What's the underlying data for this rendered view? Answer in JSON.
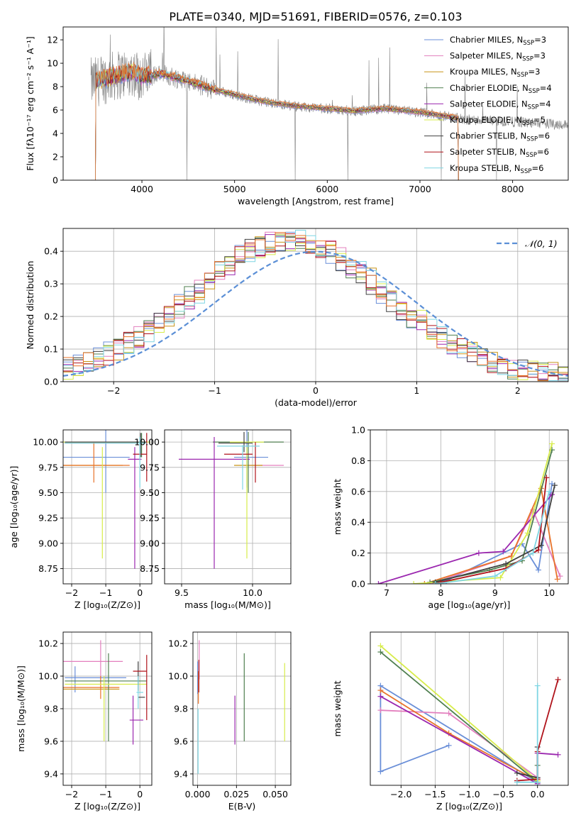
{
  "figure": {
    "title": "PLATE=0340, MJD=51691, FIBERID=0576, z=0.103"
  },
  "colors": {
    "Chabrier MILES": "#6a8fd8",
    "Salpeter MILES": "#e37fbe",
    "Kroupa MILES": "#c89418",
    "Chabrier ELODIE": "#4f7f4f",
    "Salpeter ELODIE": "#9b27af",
    "Kroupa ELODIE": "#d7ec4a",
    "Chabrier STELIB": "#404040",
    "Salpeter STELIB": "#b0131b",
    "Kroupa STELIB": "#7fd6e3",
    "orange": "#e8732a",
    "data_gray": "#808080"
  },
  "legend": {
    "fits": [
      {
        "label": "Chabrier MILES, N",
        "sub": "SSP",
        "suffix": "=3"
      },
      {
        "label": "Salpeter MILES, N",
        "sub": "SSP",
        "suffix": "=3"
      },
      {
        "label": "Kroupa MILES, N",
        "sub": "SSP",
        "suffix": "=3"
      },
      {
        "label": "Chabrier ELODIE, N",
        "sub": "SSP",
        "suffix": "=4"
      },
      {
        "label": "Salpeter ELODIE, N",
        "sub": "SSP",
        "suffix": "=4"
      },
      {
        "label": "Kroupa ELODIE, N",
        "sub": "SSP",
        "suffix": "=5"
      },
      {
        "label": "Chabrier STELIB, N",
        "sub": "SSP",
        "suffix": "=6"
      },
      {
        "label": "Salpeter STELIB, N",
        "sub": "SSP",
        "suffix": "=6"
      },
      {
        "label": "Kroupa STELIB, N",
        "sub": "SSP",
        "suffix": "=6"
      }
    ],
    "normal": "𝒩(0, 1)"
  },
  "chart_data": [
    {
      "id": "spectrum",
      "type": "line",
      "xlabel": "wavelength [Angstrom, rest frame]",
      "ylabel": "Flux [fλ10⁻¹⁷ erg cm⁻² s⁻¹ A⁻¹]",
      "xlim": [
        3150,
        8600
      ],
      "ylim": [
        0,
        13.1
      ],
      "xticks": [
        4000,
        5000,
        6000,
        7000,
        8000
      ],
      "yticks": [
        0,
        2,
        4,
        6,
        8,
        10,
        12
      ],
      "continuum_knots": [
        [
          3450,
          8.3
        ],
        [
          3700,
          8.9
        ],
        [
          3900,
          9.3
        ],
        [
          4000,
          8.8
        ],
        [
          4200,
          9.1
        ],
        [
          4400,
          8.7
        ],
        [
          4600,
          8.2
        ],
        [
          4800,
          7.7
        ],
        [
          5000,
          7.3
        ],
        [
          5200,
          6.9
        ],
        [
          5400,
          6.6
        ],
        [
          5700,
          6.3
        ],
        [
          6000,
          6.1
        ],
        [
          6300,
          5.9
        ],
        [
          6600,
          6.1
        ],
        [
          7000,
          5.8
        ],
        [
          7400,
          5.3
        ]
      ],
      "observed_range": [
        3450,
        9180
      ],
      "model_range": [
        3450,
        7420
      ]
    },
    {
      "id": "residuals",
      "type": "line",
      "xlabel": "(data-model)/error",
      "ylabel": "Normed distribution",
      "xlim": [
        -2.5,
        2.5
      ],
      "ylim": [
        0,
        0.47
      ],
      "xticks": [
        -2,
        -1,
        0,
        1,
        2
      ],
      "yticks": [
        0.0,
        0.1,
        0.2,
        0.3,
        0.4
      ],
      "normal_mu": 0,
      "normal_sigma": 1,
      "bin_width": 0.1
    },
    {
      "id": "age-vs-Z",
      "type": "scatter",
      "xlabel": "Z [log₁₀(Z/Z⊙)]",
      "ylabel": "age  [log₁₀(age/yr)]",
      "xlim": [
        -2.25,
        0.35
      ],
      "ylim": [
        8.6,
        10.12
      ],
      "xticks": [
        -2,
        -1,
        0
      ],
      "yticks": [
        8.75,
        9.0,
        9.25,
        9.5,
        9.75,
        10.0
      ],
      "points": [
        {
          "s": "Chabrier MILES",
          "x": -1.3,
          "xe": 1.0,
          "y": 9.85,
          "ye": 0.0
        },
        {
          "s": "Chabrier MILES",
          "x": -1.0,
          "xe": 0.0,
          "y": 9.85,
          "ye": 0.35
        },
        {
          "s": "Salpeter MILES",
          "x": -1.2,
          "xe": 1.0,
          "y": 9.99,
          "ye": 0.0
        },
        {
          "s": "Kroupa MILES",
          "x": -1.4,
          "xe": 0.9,
          "y": 9.77,
          "ye": 0.0
        },
        {
          "s": "orange",
          "x": -1.3,
          "xe": 1.0,
          "y": 9.77,
          "ye": 0.0
        },
        {
          "s": "orange",
          "x": -1.35,
          "xe": 0.0,
          "y": 9.8,
          "ye": 0.2
        },
        {
          "s": "Chabrier ELODIE",
          "x": -1.0,
          "xe": 1.2,
          "y": 9.99,
          "ye": 0.0
        },
        {
          "s": "Chabrier ELODIE",
          "x": 0.05,
          "xe": 0.0,
          "y": 9.97,
          "ye": 0.12
        },
        {
          "s": "Salpeter ELODIE",
          "x": -0.15,
          "xe": 0.2,
          "y": 9.83,
          "ye": 0.0
        },
        {
          "s": "Salpeter ELODIE",
          "x": -0.15,
          "xe": 0.0,
          "y": 9.35,
          "ye": 0.6
        },
        {
          "s": "Kroupa ELODIE",
          "x": -1.0,
          "xe": 1.3,
          "y": 10.0,
          "ye": 0.0
        },
        {
          "s": "Kroupa ELODIE",
          "x": -1.1,
          "xe": 0.0,
          "y": 9.4,
          "ye": 0.55
        },
        {
          "s": "Chabrier STELIB",
          "x": -1.0,
          "xe": 1.2,
          "y": 10.0,
          "ye": 0.0
        },
        {
          "s": "Chabrier STELIB",
          "x": 0.02,
          "xe": 0.0,
          "y": 9.97,
          "ye": 0.12
        },
        {
          "s": "Salpeter STELIB",
          "x": 0.0,
          "xe": 0.2,
          "y": 9.88,
          "ye": 0.0
        },
        {
          "s": "Salpeter STELIB",
          "x": 0.2,
          "xe": 0.0,
          "y": 9.85,
          "ye": 0.24
        },
        {
          "s": "Kroupa STELIB",
          "x": -1.0,
          "xe": 1.2,
          "y": 9.99,
          "ye": 0.0
        },
        {
          "s": "Kroupa STELIB",
          "x": 0.0,
          "xe": 0.0,
          "y": 9.8,
          "ye": 0.25
        }
      ]
    },
    {
      "id": "age-vs-mass",
      "type": "scatter",
      "xlabel": "mass [log₁₀(M/M⊙)]",
      "ylabel": "",
      "xlim": [
        9.38,
        10.27
      ],
      "ylim": [
        8.6,
        10.12
      ],
      "xticks": [
        9.5,
        10.0
      ],
      "yticks": [
        8.75,
        9.0,
        9.25,
        9.5,
        9.75,
        10.0
      ],
      "points": [
        {
          "s": "Chabrier MILES",
          "x": 9.99,
          "xe": 0.12,
          "y": 9.85,
          "ye": 0.0
        },
        {
          "s": "Chabrier MILES",
          "x": 9.96,
          "xe": 0.0,
          "y": 9.85,
          "ye": 0.3
        },
        {
          "s": "Salpeter MILES",
          "x": 10.08,
          "xe": 0.14,
          "y": 9.77,
          "ye": 0.0
        },
        {
          "s": "Kroupa MILES",
          "x": 9.97,
          "xe": 0.1,
          "y": 9.77,
          "ye": 0.0
        },
        {
          "s": "Chabrier ELODIE",
          "x": 9.97,
          "xe": 0.25,
          "y": 10.0,
          "ye": 0.0
        },
        {
          "s": "Chabrier ELODIE",
          "x": 9.97,
          "xe": 0.0,
          "y": 9.8,
          "ye": 0.3
        },
        {
          "s": "Salpeter ELODIE",
          "x": 9.73,
          "xe": 0.25,
          "y": 9.83,
          "ye": 0.0
        },
        {
          "s": "Salpeter ELODIE",
          "x": 9.73,
          "xe": 0.0,
          "y": 9.4,
          "ye": 0.65
        },
        {
          "s": "Kroupa ELODIE",
          "x": 9.96,
          "xe": 0.12,
          "y": 10.0,
          "ye": 0.0
        },
        {
          "s": "Kroupa ELODIE",
          "x": 9.96,
          "xe": 0.0,
          "y": 9.4,
          "ye": 0.55
        },
        {
          "s": "Chabrier STELIB",
          "x": 9.88,
          "xe": 0.12,
          "y": 9.99,
          "ye": 0.0
        },
        {
          "s": "Chabrier STELIB",
          "x": 9.94,
          "xe": 0.0,
          "y": 10.0,
          "ye": 0.1
        },
        {
          "s": "Salpeter STELIB",
          "x": 9.9,
          "xe": 0.1,
          "y": 9.88,
          "ye": 0.0
        },
        {
          "s": "Salpeter STELIB",
          "x": 10.02,
          "xe": 0.0,
          "y": 9.8,
          "ye": 0.2
        },
        {
          "s": "Kroupa STELIB",
          "x": 9.9,
          "xe": 0.15,
          "y": 9.96,
          "ye": 0.0
        },
        {
          "s": "Kroupa STELIB",
          "x": 9.93,
          "xe": 0.0,
          "y": 9.75,
          "ye": 0.22
        }
      ]
    },
    {
      "id": "weight-vs-age",
      "type": "line",
      "xlabel": "age  [log₁₀(age/yr)]",
      "ylabel": "mass weight",
      "xlim": [
        6.7,
        10.35
      ],
      "ylim": [
        0,
        1.0
      ],
      "xticks": [
        7,
        8,
        9,
        10
      ],
      "yticks": [
        0.0,
        0.2,
        0.4,
        0.6,
        0.8,
        1.0
      ],
      "series": [
        {
          "s": "Chabrier MILES",
          "x": [
            7.7,
            8.1,
            9.5,
            9.8,
            10.05
          ],
          "y": [
            0.0,
            0.02,
            0.26,
            0.09,
            0.65
          ]
        },
        {
          "s": "Salpeter MILES",
          "x": [
            7.8,
            9.3,
            9.7,
            10.2
          ],
          "y": [
            0.0,
            0.18,
            0.48,
            0.05
          ]
        },
        {
          "s": "orange",
          "x": [
            7.7,
            9.3,
            9.85,
            10.15
          ],
          "y": [
            0.0,
            0.18,
            0.62,
            0.03
          ]
        },
        {
          "s": "Chabrier ELODIE",
          "x": [
            7.8,
            8.9,
            9.5,
            10.05
          ],
          "y": [
            0.01,
            0.09,
            0.15,
            0.87
          ]
        },
        {
          "s": "Salpeter ELODIE",
          "x": [
            6.85,
            8.7,
            9.15,
            10.05
          ],
          "y": [
            0.0,
            0.2,
            0.21,
            0.58
          ]
        },
        {
          "s": "Kroupa ELODIE",
          "x": [
            7.5,
            9.1,
            9.6,
            10.05
          ],
          "y": [
            0.0,
            0.04,
            0.33,
            0.91
          ]
        },
        {
          "s": "Chabrier STELIB",
          "x": [
            7.9,
            9.2,
            9.85,
            10.1
          ],
          "y": [
            0.01,
            0.13,
            0.25,
            0.64
          ]
        },
        {
          "s": "Salpeter STELIB",
          "x": [
            8.0,
            9.2,
            9.8,
            9.95
          ],
          "y": [
            0.01,
            0.1,
            0.22,
            0.69
          ]
        },
        {
          "s": "Kroupa STELIB",
          "x": [
            7.9,
            9.0,
            9.7,
            10.0
          ],
          "y": [
            0.0,
            0.05,
            0.2,
            0.6
          ]
        }
      ]
    },
    {
      "id": "mass-vs-Z",
      "type": "scatter",
      "xlabel": "Z [log₁₀(Z/Z⊙)]",
      "ylabel": "mass [log₁₀(M/M⊙)]",
      "xlim": [
        -2.25,
        0.35
      ],
      "ylim": [
        9.33,
        10.27
      ],
      "xticks": [
        -2,
        -1,
        0
      ],
      "yticks": [
        9.4,
        9.6,
        9.8,
        10.0,
        10.2
      ],
      "points": [
        {
          "s": "Chabrier MILES",
          "x": -1.3,
          "xe": 0.9,
          "y": 9.99,
          "ye": 0.0
        },
        {
          "s": "Chabrier MILES",
          "x": -1.9,
          "xe": 0.0,
          "y": 9.98,
          "ye": 0.08
        },
        {
          "s": "Salpeter MILES",
          "x": -1.4,
          "xe": 0.9,
          "y": 10.09,
          "ye": 0.0
        },
        {
          "s": "Salpeter MILES",
          "x": -1.15,
          "xe": 0.0,
          "y": 10.1,
          "ye": 0.12
        },
        {
          "s": "Kroupa MILES",
          "x": -1.45,
          "xe": 0.85,
          "y": 9.92,
          "ye": 0.0
        },
        {
          "s": "orange",
          "x": -1.45,
          "xe": 0.85,
          "y": 9.93,
          "ye": 0.0
        },
        {
          "s": "orange",
          "x": -1.15,
          "xe": 0.0,
          "y": 9.93,
          "ye": 0.07
        },
        {
          "s": "Chabrier ELODIE",
          "x": -1.0,
          "xe": 1.2,
          "y": 9.97,
          "ye": 0.0
        },
        {
          "s": "Chabrier ELODIE",
          "x": -0.92,
          "xe": 0.0,
          "y": 9.87,
          "ye": 0.27
        },
        {
          "s": "Salpeter ELODIE",
          "x": -0.1,
          "xe": 0.2,
          "y": 9.73,
          "ye": 0.0
        },
        {
          "s": "Salpeter ELODIE",
          "x": -0.2,
          "xe": 0.0,
          "y": 9.73,
          "ye": 0.15
        },
        {
          "s": "Kroupa ELODIE",
          "x": -1.0,
          "xe": 1.2,
          "y": 9.95,
          "ye": 0.0
        },
        {
          "s": "Kroupa ELODIE",
          "x": -1.05,
          "xe": 0.0,
          "y": 9.8,
          "ye": 0.2
        },
        {
          "s": "Chabrier STELIB",
          "x": 0.05,
          "xe": 0.1,
          "y": 9.87,
          "ye": 0.0
        },
        {
          "s": "Chabrier STELIB",
          "x": -0.05,
          "xe": 0.0,
          "y": 10.0,
          "ye": 0.09
        },
        {
          "s": "Salpeter STELIB",
          "x": 0.0,
          "xe": 0.2,
          "y": 10.03,
          "ye": 0.0
        },
        {
          "s": "Salpeter STELIB",
          "x": 0.2,
          "xe": 0.0,
          "y": 9.93,
          "ye": 0.2
        },
        {
          "s": "Kroupa STELIB",
          "x": 0.0,
          "xe": 0.1,
          "y": 9.9,
          "ye": 0.0
        },
        {
          "s": "Kroupa STELIB",
          "x": -0.05,
          "xe": 0.0,
          "y": 9.9,
          "ye": 0.1
        }
      ]
    },
    {
      "id": "mass-vs-EBV",
      "type": "scatter",
      "xlabel": "E(B-V)",
      "ylabel": "",
      "xlim": [
        -0.003,
        0.06
      ],
      "ylim": [
        9.33,
        10.27
      ],
      "xticks": [
        0.0,
        0.025,
        0.05
      ],
      "yticks": [
        9.4,
        9.6,
        9.8,
        10.0,
        10.2
      ],
      "points": [
        {
          "s": "Chabrier MILES",
          "x": 0.0,
          "xe": 0.0,
          "y": 9.99,
          "ye": 0.1
        },
        {
          "s": "Salpeter MILES",
          "x": 0.001,
          "xe": 0.0,
          "y": 10.1,
          "ye": 0.12
        },
        {
          "s": "orange",
          "x": 0.0005,
          "xe": 0.0,
          "y": 9.93,
          "ye": 0.1
        },
        {
          "s": "Chabrier ELODIE",
          "x": 0.03,
          "xe": 0.0,
          "y": 9.87,
          "ye": 0.27
        },
        {
          "s": "Salpeter ELODIE",
          "x": 0.024,
          "xe": 0.0,
          "y": 9.73,
          "ye": 0.15
        },
        {
          "s": "Kroupa ELODIE",
          "x": 0.056,
          "xe": 0.0,
          "y": 9.84,
          "ye": 0.24
        },
        {
          "s": "Salpeter STELIB",
          "x": 0.0008,
          "xe": 0.0,
          "y": 10.0,
          "ye": 0.1
        },
        {
          "s": "Kroupa STELIB",
          "x": 0.0003,
          "xe": 0.0,
          "y": 9.6,
          "ye": 0.2
        }
      ]
    },
    {
      "id": "weight-vs-Z",
      "type": "line",
      "xlabel": "Z [log₁₀(Z/Z⊙)]",
      "ylabel": "mass weight",
      "xlim": [
        -2.45,
        0.45
      ],
      "ylim": [
        0,
        1.0
      ],
      "xticks": [
        -2.0,
        -1.5,
        -1.0,
        -0.5,
        0.0
      ],
      "series": [
        {
          "s": "Chabrier MILES",
          "x": [
            -1.3,
            -2.3,
            -2.3,
            0.0
          ],
          "y": [
            0.26,
            0.09,
            0.65,
            0.02
          ]
        },
        {
          "s": "Salpeter MILES",
          "x": [
            -2.3,
            -1.3,
            0.0
          ],
          "y": [
            0.49,
            0.47,
            0.05
          ]
        },
        {
          "s": "orange",
          "x": [
            -2.3,
            -1.3,
            0.0
          ],
          "y": [
            0.62,
            0.34,
            0.03
          ]
        },
        {
          "s": "Chabrier ELODIE",
          "x": [
            -2.3,
            0.0,
            0.0
          ],
          "y": [
            0.87,
            0.02,
            0.13
          ]
        },
        {
          "s": "Salpeter ELODIE",
          "x": [
            -2.3,
            0.0,
            0.0,
            0.3
          ],
          "y": [
            0.58,
            0.01,
            0.21,
            0.2
          ]
        },
        {
          "s": "Kroupa ELODIE",
          "x": [
            -2.3,
            0.0
          ],
          "y": [
            0.91,
            0.03
          ]
        },
        {
          "s": "Chabrier STELIB",
          "x": [
            -0.3,
            0.0,
            0.0
          ],
          "y": [
            0.08,
            0.05,
            0.25
          ]
        },
        {
          "s": "Salpeter STELIB",
          "x": [
            -0.3,
            0.0,
            0.0,
            0.3
          ],
          "y": [
            0.03,
            0.04,
            0.22,
            0.69
          ]
        },
        {
          "s": "Kroupa STELIB",
          "x": [
            -0.3,
            0.0,
            0.0
          ],
          "y": [
            0.02,
            0.02,
            0.65
          ]
        }
      ]
    }
  ]
}
